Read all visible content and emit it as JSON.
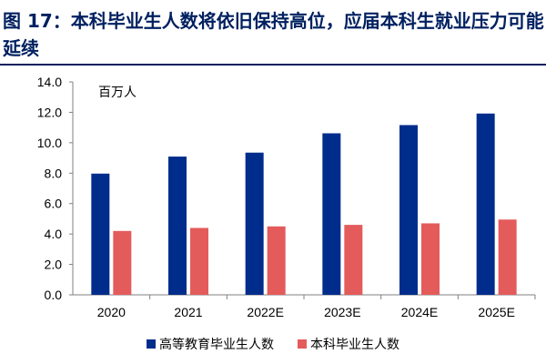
{
  "figure_title": "图 17：本科毕业生人数将依旧保持高位，应届本科生就业压力可能延续",
  "chart_data": {
    "type": "bar",
    "unit_label": "百万人",
    "categories": [
      "2020",
      "2021",
      "2022E",
      "2023E",
      "2024E",
      "2025E"
    ],
    "series": [
      {
        "name": "高等教育毕业生人数",
        "color": "#002D8C",
        "values": [
          7.97,
          9.09,
          9.35,
          10.62,
          11.16,
          11.92
        ]
      },
      {
        "name": "本科毕业生人数",
        "color": "#E45B5B",
        "values": [
          4.2,
          4.4,
          4.5,
          4.6,
          4.7,
          4.95
        ]
      }
    ],
    "ylim": [
      0,
      14
    ],
    "yticks": [
      "0.0",
      "2.0",
      "4.0",
      "6.0",
      "8.0",
      "10.0",
      "12.0",
      "14.0"
    ],
    "grid": false,
    "legend_position": "bottom"
  }
}
